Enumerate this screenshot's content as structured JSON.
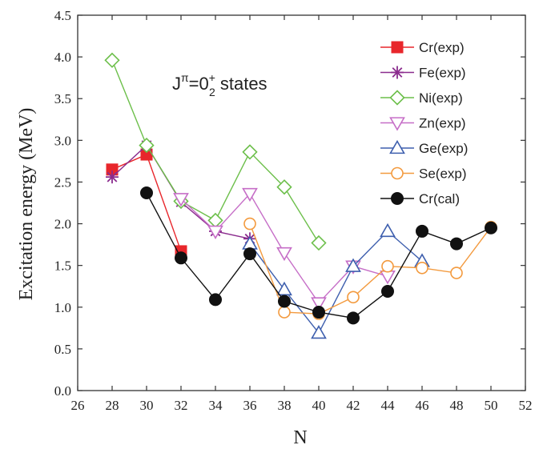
{
  "chart_data": {
    "type": "line",
    "xlabel": "N",
    "ylabel": "Excitation energy   (MeV)",
    "xlim": [
      26,
      52
    ],
    "ylim": [
      0.0,
      4.5
    ],
    "x_ticks": [
      "26",
      "28",
      "30",
      "32",
      "34",
      "36",
      "38",
      "40",
      "42",
      "44",
      "46",
      "48",
      "50",
      "52"
    ],
    "y_ticks": [
      "0.0",
      "0.5",
      "1.0",
      "1.5",
      "2.0",
      "2.5",
      "3.0",
      "3.5",
      "4.0",
      "4.5"
    ],
    "annotation": {
      "j": "J",
      "pi": "π",
      "eq": "=0",
      "plus": "+",
      "sub": "2",
      "tail": " states"
    },
    "grid": false,
    "legend_position": "top-right",
    "series": [
      {
        "name": "Cr(exp)",
        "color": "#e8262b",
        "marker": "square-filled",
        "x": [
          28,
          30,
          32
        ],
        "y": [
          2.65,
          2.83,
          1.67
        ]
      },
      {
        "name": "Fe(exp)",
        "color": "#8b2c8e",
        "marker": "asterisk",
        "x": [
          28,
          30,
          32,
          34,
          36
        ],
        "y": [
          2.56,
          2.94,
          2.26,
          1.91,
          1.82
        ]
      },
      {
        "name": "Ni(exp)",
        "color": "#6cbf4a",
        "marker": "diamond-open",
        "x": [
          28,
          30,
          32,
          34,
          36,
          38,
          40
        ],
        "y": [
          3.96,
          2.94,
          2.27,
          2.04,
          2.86,
          2.44,
          1.77
        ]
      },
      {
        "name": "Zn(exp)",
        "color": "#c66ec7",
        "marker": "triangle-down-open",
        "x": [
          32,
          34,
          36,
          38,
          40,
          42,
          44
        ],
        "y": [
          2.3,
          1.91,
          2.36,
          1.65,
          1.05,
          1.49,
          1.37
        ]
      },
      {
        "name": "Ge(exp)",
        "color": "#3e5fae",
        "marker": "triangle-up-open",
        "x": [
          36,
          38,
          40,
          42,
          44,
          46
        ],
        "y": [
          1.76,
          1.21,
          0.69,
          1.49,
          1.91,
          1.55
        ]
      },
      {
        "name": "Se(exp)",
        "color": "#f39a3e",
        "marker": "circle-open",
        "x": [
          36,
          38,
          40,
          42,
          44,
          46,
          48,
          50
        ],
        "y": [
          2.0,
          0.94,
          0.92,
          1.12,
          1.49,
          1.47,
          1.41,
          1.96
        ]
      },
      {
        "name": "Cr(cal)",
        "color": "#111111",
        "marker": "circle-filled",
        "x": [
          30,
          32,
          34,
          36,
          38,
          40,
          42,
          44,
          46,
          48,
          50
        ],
        "y": [
          2.37,
          1.59,
          1.09,
          1.64,
          1.07,
          0.94,
          0.87,
          1.19,
          1.91,
          1.76,
          1.95
        ]
      }
    ]
  }
}
